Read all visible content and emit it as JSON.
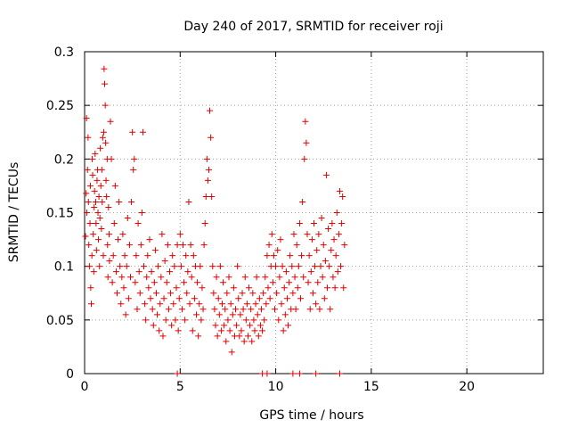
{
  "chart_data": {
    "type": "scatter",
    "title": "Day 240 of 2017, SRMTID for receiver roji",
    "xlabel": "GPS time / hours",
    "ylabel": "SRMTID / TECUs",
    "xlim": [
      0,
      24
    ],
    "ylim": [
      0,
      0.3
    ],
    "xticks": [
      0,
      5,
      10,
      15,
      20
    ],
    "xtick_labels": [
      "0",
      "5",
      "10",
      "15",
      "20"
    ],
    "yticks": [
      0,
      0.05,
      0.1,
      0.15,
      0.2,
      0.25,
      0.3
    ],
    "ytick_labels": [
      "0",
      "0.05",
      "0.1",
      "0.15",
      "0.2",
      "0.25",
      "0.3"
    ],
    "grid": true,
    "legend": "none",
    "marker": "+",
    "color": "#e00000",
    "series": [
      {
        "points": [
          [
            0.05,
            0.128
          ],
          [
            0.08,
            0.168
          ],
          [
            0.1,
            0.238
          ],
          [
            0.12,
            0.15
          ],
          [
            0.15,
            0.19
          ],
          [
            0.18,
            0.22
          ],
          [
            0.2,
            0.16
          ],
          [
            0.22,
            0.12
          ],
          [
            0.25,
            0.1
          ],
          [
            0.28,
            0.14
          ],
          [
            0.3,
            0.175
          ],
          [
            0.32,
            0.08
          ],
          [
            0.35,
            0.065
          ],
          [
            0.38,
            0.11
          ],
          [
            0.4,
            0.2
          ],
          [
            0.42,
            0.185
          ],
          [
            0.45,
            0.13
          ],
          [
            0.48,
            0.095
          ],
          [
            0.5,
            0.155
          ],
          [
            0.52,
            0.17
          ],
          [
            0.55,
            0.205
          ],
          [
            0.58,
            0.16
          ],
          [
            0.6,
            0.14
          ],
          [
            0.62,
            0.115
          ],
          [
            0.65,
            0.18
          ],
          [
            0.68,
            0.19
          ],
          [
            0.7,
            0.15
          ],
          [
            0.72,
            0.125
          ],
          [
            0.75,
            0.165
          ],
          [
            0.78,
            0.1
          ],
          [
            0.8,
            0.145
          ],
          [
            0.82,
            0.21
          ],
          [
            0.85,
            0.175
          ],
          [
            0.88,
            0.135
          ],
          [
            0.9,
            0.19
          ],
          [
            0.92,
            0.16
          ],
          [
            0.95,
            0.22
          ],
          [
            0.98,
            0.11
          ],
          [
            1.0,
            0.225
          ],
          [
            1.02,
            0.284
          ],
          [
            1.05,
            0.27
          ],
          [
            1.08,
            0.25
          ],
          [
            1.1,
            0.215
          ],
          [
            1.12,
            0.18
          ],
          [
            1.15,
            0.165
          ],
          [
            1.18,
            0.2
          ],
          [
            1.2,
            0.12
          ],
          [
            1.22,
            0.09
          ],
          [
            1.25,
            0.155
          ],
          [
            1.28,
            0.13
          ],
          [
            1.3,
            0.105
          ],
          [
            1.35,
            0.235
          ],
          [
            1.4,
            0.2
          ],
          [
            1.45,
            0.085
          ],
          [
            1.5,
            0.11
          ],
          [
            1.55,
            0.14
          ],
          [
            1.6,
            0.175
          ],
          [
            1.65,
            0.095
          ],
          [
            1.7,
            0.075
          ],
          [
            1.75,
            0.125
          ],
          [
            1.8,
            0.16
          ],
          [
            1.85,
            0.1
          ],
          [
            1.9,
            0.065
          ],
          [
            1.95,
            0.09
          ],
          [
            2.0,
            0.13
          ],
          [
            2.05,
            0.08
          ],
          [
            2.1,
            0.11
          ],
          [
            2.15,
            0.055
          ],
          [
            2.2,
            0.1
          ],
          [
            2.25,
            0.145
          ],
          [
            2.3,
            0.07
          ],
          [
            2.35,
            0.12
          ],
          [
            2.4,
            0.09
          ],
          [
            2.45,
            0.16
          ],
          [
            2.5,
            0.225
          ],
          [
            2.55,
            0.19
          ],
          [
            2.6,
            0.2
          ],
          [
            2.65,
            0.085
          ],
          [
            2.7,
            0.11
          ],
          [
            2.75,
            0.06
          ],
          [
            2.8,
            0.14
          ],
          [
            2.85,
            0.095
          ],
          [
            2.9,
            0.075
          ],
          [
            2.95,
            0.12
          ],
          [
            3.0,
            0.15
          ],
          [
            3.05,
            0.225
          ],
          [
            3.1,
            0.1
          ],
          [
            3.15,
            0.065
          ],
          [
            3.2,
            0.05
          ],
          [
            3.25,
            0.09
          ],
          [
            3.3,
            0.11
          ],
          [
            3.35,
            0.08
          ],
          [
            3.4,
            0.125
          ],
          [
            3.45,
            0.07
          ],
          [
            3.5,
            0.095
          ],
          [
            3.55,
            0.06
          ],
          [
            3.6,
            0.045
          ],
          [
            3.65,
            0.085
          ],
          [
            3.7,
            0.115
          ],
          [
            3.75,
            0.075
          ],
          [
            3.8,
            0.055
          ],
          [
            3.85,
            0.1
          ],
          [
            3.9,
            0.04
          ],
          [
            3.95,
            0.065
          ],
          [
            4.0,
            0.09
          ],
          [
            4.05,
            0.13
          ],
          [
            4.1,
            0.035
          ],
          [
            4.15,
            0.07
          ],
          [
            4.2,
            0.105
          ],
          [
            4.25,
            0.05
          ],
          [
            4.3,
            0.085
          ],
          [
            4.35,
            0.12
          ],
          [
            4.4,
            0.06
          ],
          [
            4.45,
            0.095
          ],
          [
            4.5,
            0.075
          ],
          [
            4.55,
            0.045
          ],
          [
            4.6,
            0.11
          ],
          [
            4.65,
            0.065
          ],
          [
            4.7,
            0.1
          ],
          [
            4.75,
            0.05
          ],
          [
            4.8,
            0.08
          ],
          [
            4.85,
            0.12
          ],
          [
            4.9,
            0.04
          ],
          [
            4.95,
            0.07
          ],
          [
            5.0,
            0.13
          ],
          [
            5.05,
            0.1
          ],
          [
            5.1,
            0.06
          ],
          [
            5.15,
            0.12
          ],
          [
            5.2,
            0.085
          ],
          [
            5.25,
            0.05
          ],
          [
            5.3,
            0.11
          ],
          [
            5.35,
            0.075
          ],
          [
            5.4,
            0.095
          ],
          [
            5.45,
            0.16
          ],
          [
            5.5,
            0.065
          ],
          [
            5.55,
            0.12
          ],
          [
            5.6,
            0.09
          ],
          [
            5.65,
            0.04
          ],
          [
            5.7,
            0.11
          ],
          [
            5.75,
            0.07
          ],
          [
            5.8,
            0.1
          ],
          [
            5.85,
            0.055
          ],
          [
            5.9,
            0.085
          ],
          [
            5.95,
            0.035
          ],
          [
            6.0,
            0.065
          ],
          [
            6.05,
            0.1
          ],
          [
            6.1,
            0.05
          ],
          [
            6.15,
            0.08
          ],
          [
            6.2,
            0.06
          ],
          [
            6.25,
            0.12
          ],
          [
            6.3,
            0.14
          ],
          [
            6.35,
            0.165
          ],
          [
            6.4,
            0.2
          ],
          [
            6.45,
            0.18
          ],
          [
            6.5,
            0.19
          ],
          [
            6.55,
            0.245
          ],
          [
            6.6,
            0.22
          ],
          [
            6.65,
            0.165
          ],
          [
            6.7,
            0.1
          ],
          [
            6.75,
            0.075
          ],
          [
            6.8,
            0.06
          ],
          [
            6.85,
            0.045
          ],
          [
            6.9,
            0.09
          ],
          [
            6.95,
            0.035
          ],
          [
            7.0,
            0.07
          ],
          [
            7.05,
            0.055
          ],
          [
            7.1,
            0.1
          ],
          [
            7.15,
            0.04
          ],
          [
            7.2,
            0.065
          ],
          [
            7.25,
            0.085
          ],
          [
            7.3,
            0.045
          ],
          [
            7.35,
            0.06
          ],
          [
            7.4,
            0.03
          ],
          [
            7.45,
            0.075
          ],
          [
            7.5,
            0.05
          ],
          [
            7.55,
            0.09
          ],
          [
            7.6,
            0.04
          ],
          [
            7.65,
            0.065
          ],
          [
            7.7,
            0.02
          ],
          [
            7.75,
            0.055
          ],
          [
            7.8,
            0.08
          ],
          [
            7.85,
            0.035
          ],
          [
            7.9,
            0.06
          ],
          [
            7.95,
            0.045
          ],
          [
            8.0,
            0.1
          ],
          [
            8.05,
            0.07
          ],
          [
            8.1,
            0.035
          ],
          [
            8.15,
            0.055
          ],
          [
            8.2,
            0.04
          ],
          [
            8.25,
            0.075
          ],
          [
            8.3,
            0.06
          ],
          [
            8.35,
            0.03
          ],
          [
            8.4,
            0.09
          ],
          [
            8.45,
            0.05
          ],
          [
            8.5,
            0.065
          ],
          [
            8.55,
            0.035
          ],
          [
            8.6,
            0.08
          ],
          [
            8.65,
            0.045
          ],
          [
            8.7,
            0.06
          ],
          [
            8.75,
            0.03
          ],
          [
            8.8,
            0.075
          ],
          [
            8.85,
            0.05
          ],
          [
            8.9,
            0.04
          ],
          [
            8.95,
            0.065
          ],
          [
            9.0,
            0.09
          ],
          [
            9.05,
            0.055
          ],
          [
            9.1,
            0.035
          ],
          [
            9.15,
            0.07
          ],
          [
            9.2,
            0.045
          ],
          [
            9.25,
            0.06
          ],
          [
            9.3,
            0.04
          ],
          [
            9.35,
            0.075
          ],
          [
            9.4,
            0.05
          ],
          [
            9.45,
            0.09
          ],
          [
            9.5,
            0.065
          ],
          [
            9.55,
            0.11
          ],
          [
            9.6,
            0.08
          ],
          [
            9.65,
            0.12
          ],
          [
            9.7,
            0.07
          ],
          [
            9.75,
            0.1
          ],
          [
            9.8,
            0.13
          ],
          [
            9.85,
            0.085
          ],
          [
            9.9,
            0.11
          ],
          [
            9.95,
            0.06
          ],
          [
            10.0,
            0.1
          ],
          [
            10.05,
            0.075
          ],
          [
            10.1,
            0.115
          ],
          [
            10.15,
            0.05
          ],
          [
            10.2,
            0.09
          ],
          [
            10.25,
            0.125
          ],
          [
            10.3,
            0.065
          ],
          [
            10.35,
            0.1
          ],
          [
            10.4,
            0.04
          ],
          [
            10.45,
            0.08
          ],
          [
            10.5,
            0.055
          ],
          [
            10.55,
            0.095
          ],
          [
            10.6,
            0.07
          ],
          [
            10.65,
            0.045
          ],
          [
            10.7,
            0.085
          ],
          [
            10.75,
            0.11
          ],
          [
            10.8,
            0.06
          ],
          [
            10.85,
            0.1
          ],
          [
            10.9,
            0.075
          ],
          [
            10.95,
            0.13
          ],
          [
            11.0,
            0.09
          ],
          [
            11.05,
            0.06
          ],
          [
            11.1,
            0.12
          ],
          [
            11.15,
            0.08
          ],
          [
            11.2,
            0.1
          ],
          [
            11.25,
            0.14
          ],
          [
            11.3,
            0.07
          ],
          [
            11.35,
            0.11
          ],
          [
            11.4,
            0.16
          ],
          [
            11.45,
            0.09
          ],
          [
            11.5,
            0.2
          ],
          [
            11.55,
            0.235
          ],
          [
            11.6,
            0.215
          ],
          [
            11.65,
            0.13
          ],
          [
            11.7,
            0.085
          ],
          [
            11.75,
            0.11
          ],
          [
            11.8,
            0.06
          ],
          [
            11.85,
            0.095
          ],
          [
            11.9,
            0.125
          ],
          [
            11.95,
            0.075
          ],
          [
            12.0,
            0.14
          ],
          [
            12.05,
            0.1
          ],
          [
            12.1,
            0.065
          ],
          [
            12.15,
            0.115
          ],
          [
            12.2,
            0.085
          ],
          [
            12.25,
            0.13
          ],
          [
            12.3,
            0.06
          ],
          [
            12.35,
            0.1
          ],
          [
            12.4,
            0.145
          ],
          [
            12.45,
            0.09
          ],
          [
            12.5,
            0.12
          ],
          [
            12.55,
            0.07
          ],
          [
            12.6,
            0.105
          ],
          [
            12.65,
            0.185
          ],
          [
            12.7,
            0.08
          ],
          [
            12.75,
            0.135
          ],
          [
            12.8,
            0.1
          ],
          [
            12.85,
            0.06
          ],
          [
            12.9,
            0.115
          ],
          [
            12.95,
            0.14
          ],
          [
            13.0,
            0.09
          ],
          [
            13.05,
            0.125
          ],
          [
            13.1,
            0.08
          ],
          [
            13.15,
            0.11
          ],
          [
            13.2,
            0.15
          ],
          [
            13.25,
            0.095
          ],
          [
            13.3,
            0.13
          ],
          [
            13.35,
            0.17
          ],
          [
            13.4,
            0.1
          ],
          [
            13.45,
            0.14
          ],
          [
            13.5,
            0.165
          ],
          [
            13.55,
            0.08
          ],
          [
            13.6,
            0.12
          ]
        ]
      },
      {
        "points": [
          [
            4.85,
            0
          ],
          [
            9.3,
            0
          ],
          [
            9.55,
            0
          ],
          [
            10.9,
            0
          ],
          [
            11.25,
            0
          ],
          [
            12.1,
            0
          ],
          [
            13.35,
            0
          ]
        ]
      }
    ]
  }
}
